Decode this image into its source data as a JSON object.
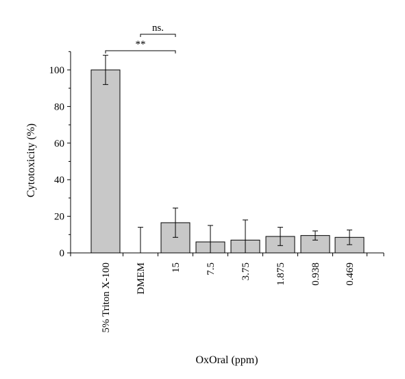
{
  "chart_data": {
    "type": "bar",
    "xlabel": "OxOral (ppm)",
    "ylabel": "Cytotoxicity (%)",
    "ylim": [
      0,
      110
    ],
    "yticks": [
      0,
      20,
      40,
      60,
      80,
      100
    ],
    "categories": [
      "5% Triton X-100",
      "DMEM",
      "15",
      "7.5",
      "3.75",
      "1.875",
      "0.938",
      "0.469"
    ],
    "values": [
      100,
      0,
      16.5,
      6,
      7,
      9,
      9.5,
      8.5
    ],
    "errors": [
      8,
      14,
      8,
      9,
      11,
      5,
      2.5,
      4
    ],
    "bar_color": "#c8c8c8",
    "significance": [
      {
        "from": 0,
        "to": 2,
        "label": "**"
      },
      {
        "from": 1,
        "to": 2,
        "label": "ns."
      }
    ]
  }
}
